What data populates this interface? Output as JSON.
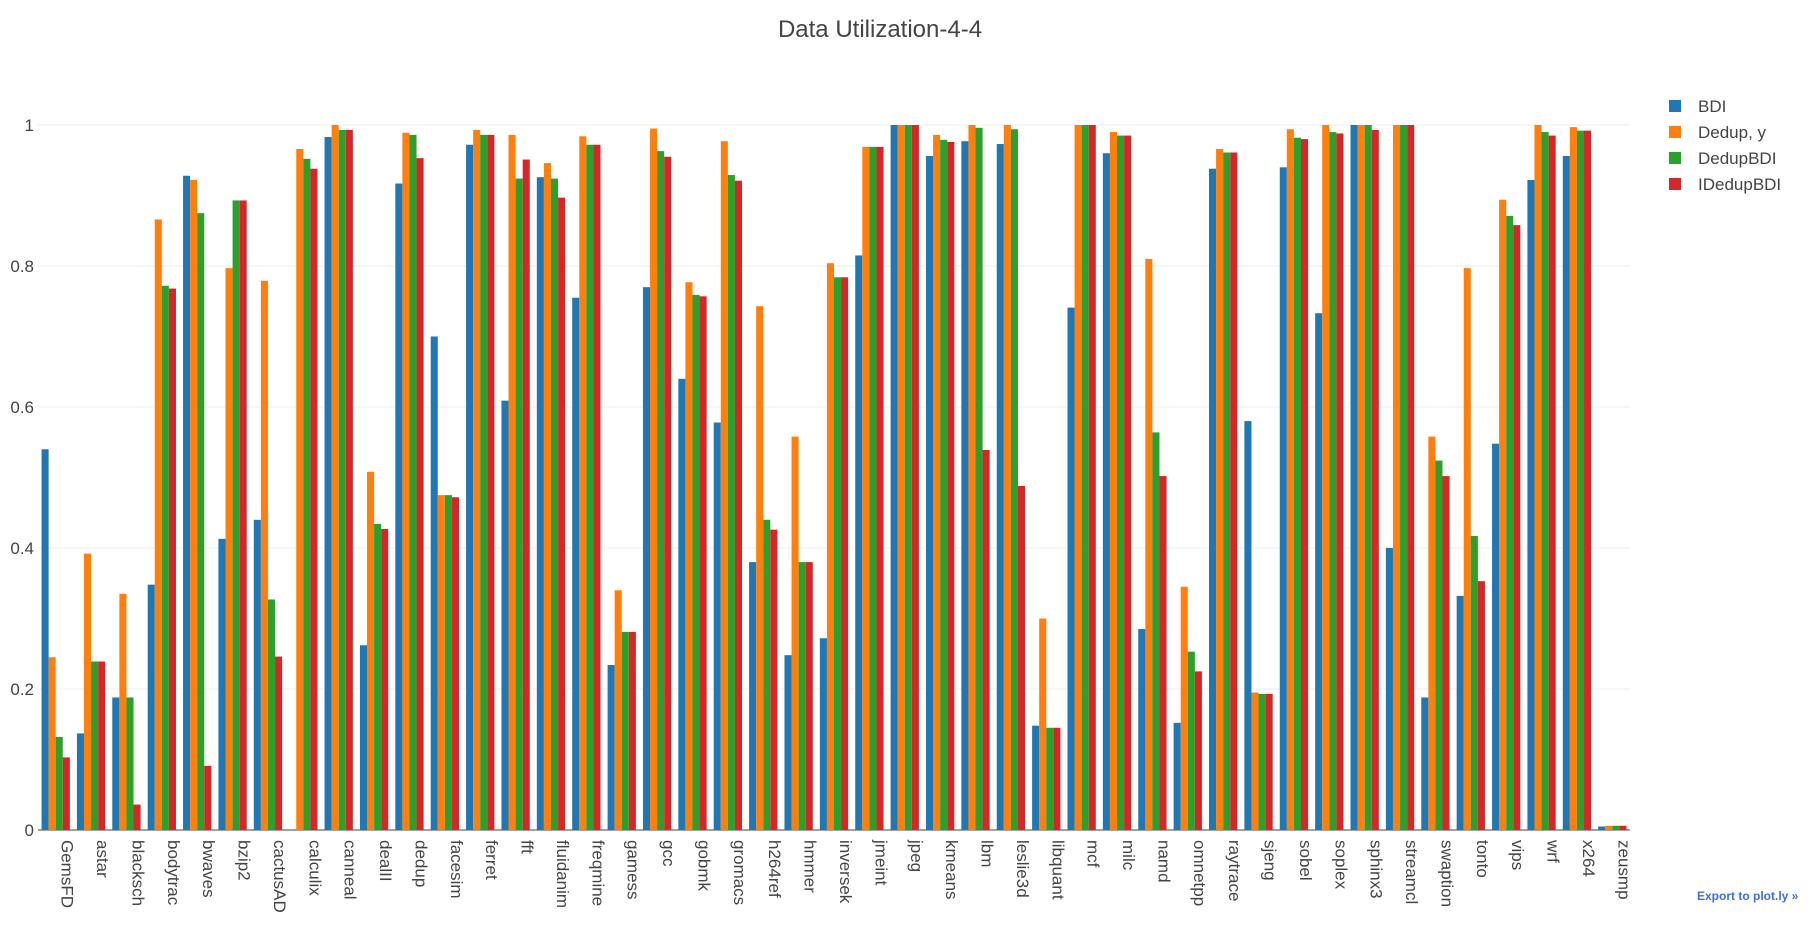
{
  "chart_data": {
    "type": "bar",
    "title": "Data Utilization-4-4",
    "xlabel": "",
    "ylabel": "",
    "ylim": [
      0,
      1.05
    ],
    "yticks": [
      0,
      0.2,
      0.4,
      0.6,
      0.8,
      1
    ],
    "ytick_labels": [
      "0",
      "0.2",
      "0.4",
      "0.6",
      "0.8",
      "1"
    ],
    "grid": true,
    "legend_position": "top-right",
    "categories": [
      "GemsFD",
      "astar",
      "blacksch",
      "bodytrac",
      "bwaves",
      "bzip2",
      "cactusAD",
      "calculix",
      "canneal",
      "dealII",
      "dedup",
      "facesim",
      "ferret",
      "fft",
      "fluidanim",
      "freqmine",
      "gamess",
      "gcc",
      "gobmk",
      "gromacs",
      "h264ref",
      "hmmer",
      "inversek",
      "jmeint",
      "jpeg",
      "kmeans",
      "lbm",
      "leslie3d",
      "libquant",
      "mcf",
      "milc",
      "namd",
      "omnetpp",
      "raytrace",
      "sjeng",
      "sobel",
      "soplex",
      "sphinx3",
      "streamcl",
      "swaption",
      "tonto",
      "vips",
      "wrf",
      "x264",
      "zeusmp"
    ],
    "series": [
      {
        "name": "BDI",
        "color": "#1f77b4",
        "values": [
          0.54,
          0.137,
          0.188,
          0.348,
          0.928,
          0.413,
          0.44,
          0.0,
          0.983,
          0.262,
          0.917,
          0.7,
          0.972,
          0.609,
          0.926,
          0.755,
          0.234,
          0.77,
          0.64,
          0.578,
          0.38,
          0.248,
          0.272,
          0.815,
          1.0,
          0.956,
          0.977,
          0.973,
          0.148,
          0.741,
          0.96,
          0.285,
          0.152,
          0.938,
          0.58,
          0.94,
          0.733,
          1.0,
          0.4,
          0.188,
          0.332,
          0.548,
          0.922,
          0.956,
          0.005
        ]
      },
      {
        "name": "Dedup, y",
        "color": "#ff7f0e",
        "values": [
          0.245,
          0.392,
          0.335,
          0.866,
          0.922,
          0.797,
          0.779,
          0.966,
          1.0,
          0.508,
          0.989,
          0.475,
          0.993,
          0.986,
          0.946,
          0.984,
          0.34,
          0.995,
          0.777,
          0.977,
          0.743,
          0.558,
          0.804,
          0.969,
          1.0,
          0.986,
          1.0,
          1.0,
          0.3,
          1.0,
          0.99,
          0.81,
          0.345,
          0.966,
          0.195,
          0.994,
          1.0,
          1.0,
          1.0,
          0.558,
          0.797,
          0.894,
          1.0,
          0.997,
          0.006
        ]
      },
      {
        "name": "DedupBDI",
        "color": "#2ca02c",
        "values": [
          0.132,
          0.239,
          0.188,
          0.772,
          0.875,
          0.893,
          0.327,
          0.952,
          0.993,
          0.434,
          0.986,
          0.475,
          0.986,
          0.924,
          0.924,
          0.972,
          0.281,
          0.963,
          0.759,
          0.929,
          0.44,
          0.38,
          0.784,
          0.969,
          1.0,
          0.979,
          0.996,
          0.994,
          0.145,
          1.0,
          0.985,
          0.564,
          0.253,
          0.961,
          0.193,
          0.982,
          0.99,
          1.0,
          1.0,
          0.524,
          0.417,
          0.871,
          0.99,
          0.992,
          0.006
        ]
      },
      {
        "name": "IDedupBDI",
        "color": "#d62728",
        "values": [
          0.103,
          0.239,
          0.036,
          0.768,
          0.091,
          0.893,
          0.246,
          0.938,
          0.993,
          0.427,
          0.953,
          0.472,
          0.986,
          0.951,
          0.897,
          0.972,
          0.281,
          0.955,
          0.757,
          0.921,
          0.426,
          0.38,
          0.784,
          0.969,
          1.0,
          0.976,
          0.539,
          0.488,
          0.145,
          1.0,
          0.985,
          0.502,
          0.225,
          0.961,
          0.193,
          0.98,
          0.988,
          0.993,
          1.0,
          0.502,
          0.353,
          0.858,
          0.985,
          0.992,
          0.006
        ]
      }
    ]
  },
  "export_link": "Export to plot.ly »"
}
